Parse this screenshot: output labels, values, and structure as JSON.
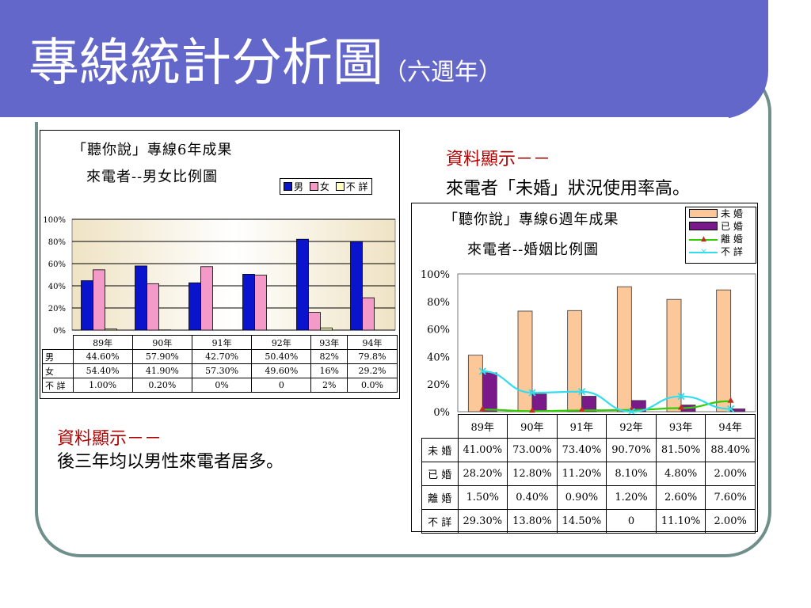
{
  "slide": {
    "title": "專線統計分析圖",
    "subtitle": "（六週年）",
    "colors": {
      "title_bar": "#6367c9",
      "frame": "#6f8f8a",
      "note_head": "#b00000"
    }
  },
  "note_left": {
    "head": "資料顯示－－",
    "text": "後三年均以男性來電者居多。"
  },
  "note_right": {
    "head": "資料顯示－－",
    "text": "來電者「未婚」狀況使用率高。"
  },
  "chart1": {
    "title_line1": "「聽你說」專線6年成果",
    "title_line2": "來電者--男女比例圖",
    "yticks": [
      "100%",
      "80%",
      "60%",
      "40%",
      "20%",
      "0%"
    ],
    "row_labels": [
      "男",
      "女",
      "不 詳"
    ],
    "table": [
      [
        "44.60%",
        "57.90%",
        "42.70%",
        "50.40%",
        "82%",
        "79.8%"
      ],
      [
        "54.40%",
        "41.90%",
        "57.30%",
        "49.60%",
        "16%",
        "29.2%"
      ],
      [
        "1.00%",
        "0.20%",
        "0%",
        "0",
        "2%",
        "0.0%"
      ]
    ]
  },
  "chart2": {
    "title_line1": "「聽你說」專線6週年成果",
    "title_line2": "來電者--婚姻比例圖",
    "yticks": [
      "100%",
      "80%",
      "60%",
      "40%",
      "20%",
      "0%"
    ],
    "row_labels": [
      "未 婚",
      "已 婚",
      "離 婚",
      "不 詳"
    ],
    "table": [
      [
        "41.00%",
        "73.00%",
        "73.40%",
        "90.70%",
        "81.50%",
        "88.40%"
      ],
      [
        "28.20%",
        "12.80%",
        "11.20%",
        "8.10%",
        "4.80%",
        "2.00%"
      ],
      [
        "1.50%",
        "0.40%",
        "0.90%",
        "1.20%",
        "2.60%",
        "7.60%"
      ],
      [
        "29.30%",
        "13.80%",
        "14.50%",
        "0",
        "11.10%",
        "2.00%"
      ]
    ]
  },
  "chart_data": [
    {
      "type": "bar",
      "title": "「聽你說」專線6年成果 來電者--男女比例圖",
      "categories": [
        "89年",
        "90年",
        "91年",
        "92年",
        "93年",
        "94年"
      ],
      "series": [
        {
          "name": "男",
          "values": [
            44.6,
            57.9,
            42.7,
            50.4,
            82,
            79.8
          ],
          "color": "#0a14cc"
        },
        {
          "name": "女",
          "values": [
            54.4,
            41.9,
            57.3,
            49.6,
            16,
            29.2
          ],
          "color": "#f39ac9"
        },
        {
          "name": "不 詳",
          "values": [
            1.0,
            0.2,
            0,
            0,
            2,
            0.0
          ],
          "color": "#ffffc0"
        }
      ],
      "ylim": [
        0,
        100
      ],
      "grid": true,
      "legend": "top-right"
    },
    {
      "type": "bar",
      "title": "「聽你說」專線6週年成果 來電者--婚姻比例圖",
      "categories": [
        "89年",
        "90年",
        "91年",
        "92年",
        "93年",
        "94年"
      ],
      "series": [
        {
          "name": "未 婚",
          "kind": "bar",
          "values": [
            41.0,
            73.0,
            73.4,
            90.7,
            81.5,
            88.4
          ],
          "color": "#fcc89a"
        },
        {
          "name": "已 婚",
          "kind": "bar",
          "values": [
            28.2,
            12.8,
            11.2,
            8.1,
            4.8,
            2.0
          ],
          "color": "#7a1a8a"
        },
        {
          "name": "離 婚",
          "kind": "line",
          "values": [
            1.5,
            0.4,
            0.9,
            1.2,
            2.6,
            7.6
          ],
          "color": "#33cc00"
        },
        {
          "name": "不 詳",
          "kind": "line",
          "values": [
            29.3,
            13.8,
            14.5,
            0,
            11.1,
            2.0
          ],
          "color": "#33ddee"
        }
      ],
      "ylim": [
        0,
        100
      ],
      "grid": false,
      "legend": "top-right"
    }
  ]
}
